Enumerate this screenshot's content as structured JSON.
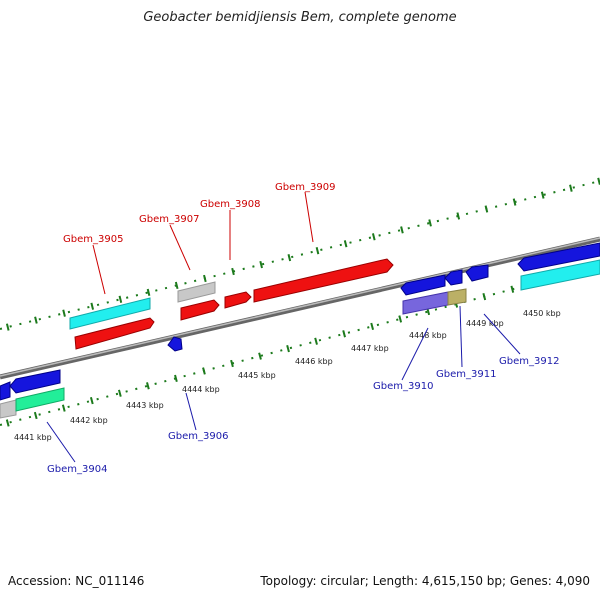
{
  "title": "Geobacter bemidjiensis Bem, complete genome",
  "footer": {
    "accession": "Accession: NC_011146",
    "summary": "Topology: circular; Length: 4,615,150 bp; Genes: 4,090"
  },
  "colors": {
    "top_label": "#cc0000",
    "bottom_label": "#1a1aaa",
    "tick": "#1c7a1c",
    "axis": "#888888",
    "red": "#ee1111",
    "blue": "#1515dd",
    "cyan": "#22eeee",
    "grey": "#c8c8c8",
    "green": "#22ee99",
    "violet": "#7766dd",
    "olive": "#bbb066"
  },
  "positions_kbp": [
    "4441 kbp",
    "4442 kbp",
    "4443 kbp",
    "4444 kbp",
    "4445 kbp",
    "4446 kbp",
    "4447 kbp",
    "4448 kbp",
    "4449 kbp",
    "4450 kbp"
  ],
  "labels_top": [
    "Gbem_3905",
    "Gbem_3907",
    "Gbem_3908",
    "Gbem_3909"
  ],
  "labels_bottom": [
    "Gbem_3904",
    "Gbem_3906",
    "Gbem_3910",
    "Gbem_3911",
    "Gbem_3912"
  ]
}
